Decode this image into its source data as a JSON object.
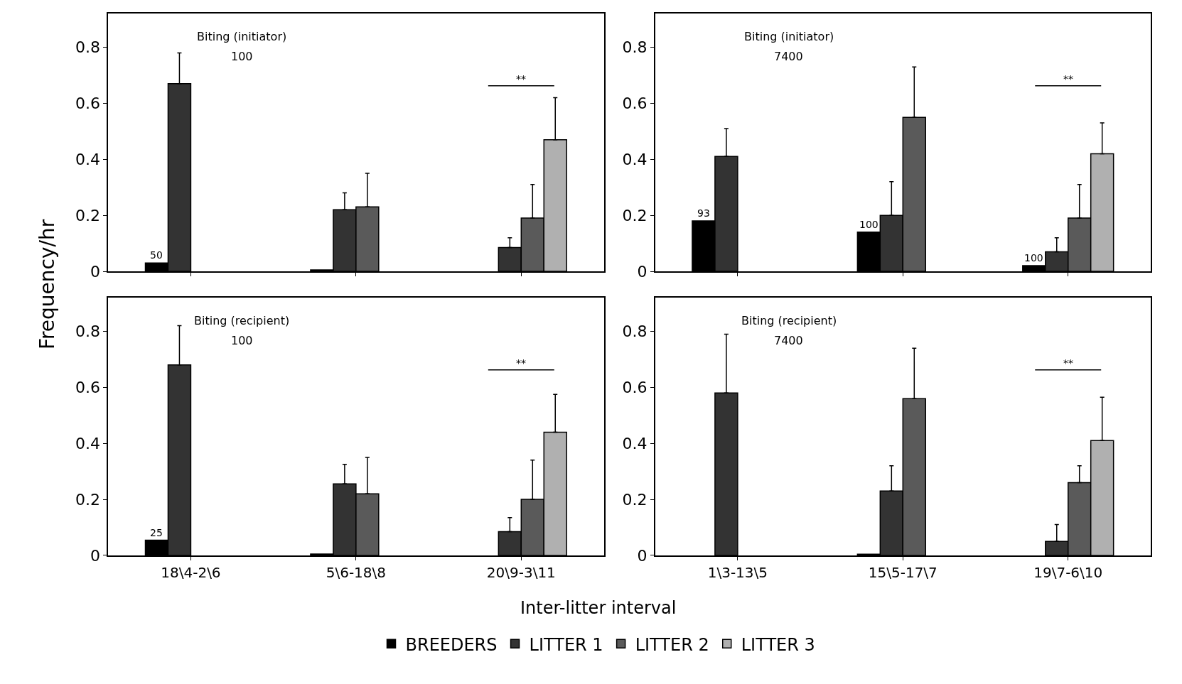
{
  "chart_data": [
    {
      "type": "bar",
      "categories": [
        "18\\4-2\\6",
        "5\\6-18\\8",
        "20\\9-3\\11"
      ],
      "ylabel": "Frequency/hr",
      "ylim": [
        0,
        0.92
      ],
      "yticks": [
        0,
        0.2,
        0.4,
        0.6,
        0.8
      ],
      "tick_labels": "y",
      "legend": "bottom",
      "annotations": [
        "Biting (initiator)",
        "100",
        "**",
        {
          "text": "50",
          "x": "18\\4-2\\6",
          "y": 0.03
        }
      ],
      "series": [
        {
          "name": "BREEDERS",
          "color": "#000000",
          "values": [
            0.03,
            0.005,
            null
          ]
        },
        {
          "name": "LITTER 1",
          "color": "#333333",
          "values": [
            0.67,
            0.22,
            0.085
          ],
          "errors": [
            [
              0.67,
              0.78
            ],
            [
              0.22,
              0.28
            ],
            [
              0.085,
              0.12
            ]
          ]
        },
        {
          "name": "LITTER 2",
          "color": "#5a5a5a",
          "values": [
            null,
            0.23,
            0.19
          ],
          "errors": [
            null,
            [
              0.23,
              0.35
            ],
            [
              0.19,
              0.31
            ]
          ]
        },
        {
          "name": "LITTER 3",
          "color": "#b0b0b0",
          "values": [
            null,
            null,
            0.47
          ],
          "errors": [
            null,
            null,
            [
              0.47,
              0.62
            ]
          ]
        }
      ]
    },
    {
      "type": "bar",
      "categories": [
        "1\\3-13\\5",
        "15\\5-17\\7",
        "19\\7-6\\10"
      ],
      "ylim": [
        0,
        0.92
      ],
      "yticks": [
        0,
        0.2,
        0.4,
        0.6,
        0.8
      ],
      "tick_labels": "y",
      "annotations": [
        "Biting (initiator)",
        "7400",
        "**",
        {
          "text": "93",
          "x": "1\\3-13\\5",
          "y": 0.18
        },
        {
          "text": "100",
          "x": "15\\5-17\\7",
          "y": 0.14
        },
        {
          "text": "100",
          "x": "19\\7-6\\10",
          "y": 0.02
        }
      ],
      "series": [
        {
          "color": "#000000",
          "values": [
            0.18,
            0.14,
            0.02
          ]
        },
        {
          "color": "#333333",
          "values": [
            0.41,
            0.2,
            0.07
          ],
          "errors": [
            [
              0.41,
              0.51
            ],
            [
              0.2,
              0.32
            ],
            [
              0.07,
              0.12
            ]
          ]
        },
        {
          "color": "#5a5a5a",
          "values": [
            null,
            0.55,
            0.19
          ],
          "errors": [
            null,
            [
              0.55,
              0.73
            ],
            [
              0.19,
              0.31
            ]
          ]
        },
        {
          "color": "#b0b0b0",
          "values": [
            null,
            null,
            0.42
          ],
          "errors": [
            null,
            null,
            [
              0.42,
              0.53
            ]
          ]
        }
      ]
    },
    {
      "type": "bar",
      "categories": [
        "18\\4-2\\6",
        "5\\6-18\\8",
        "20\\9-3\\11"
      ],
      "xlabel": "Inter-litter interval",
      "ylim": [
        0,
        0.92
      ],
      "yticks": [
        0,
        0.2,
        0.4,
        0.6,
        0.8
      ],
      "annotations": [
        "Biting (recipient)",
        "100",
        "**",
        {
          "text": "25",
          "x": "18\\4-2\\6",
          "y": 0.054
        }
      ],
      "series": [
        {
          "color": "#000000",
          "values": [
            0.054,
            0.005,
            null
          ]
        },
        {
          "color": "#333333",
          "values": [
            0.68,
            0.255,
            0.085
          ],
          "errors": [
            [
              0.68,
              0.82
            ],
            [
              0.255,
              0.325
            ],
            [
              0.085,
              0.135
            ]
          ]
        },
        {
          "color": "#5a5a5a",
          "values": [
            null,
            0.22,
            0.2
          ],
          "errors": [
            null,
            [
              0.22,
              0.35
            ],
            [
              0.2,
              0.34
            ]
          ]
        },
        {
          "color": "#b0b0b0",
          "values": [
            null,
            null,
            0.44
          ],
          "errors": [
            null,
            null,
            [
              0.44,
              0.575
            ]
          ]
        }
      ]
    },
    {
      "type": "bar",
      "categories": [
        "1\\3-13\\5",
        "15\\5-17\\7",
        "19\\7-6\\10"
      ],
      "ylim": [
        0,
        0.92
      ],
      "yticks": [
        0,
        0.2,
        0.4,
        0.6,
        0.8
      ],
      "annotations": [
        "Biting (recipient)",
        "7400",
        "**"
      ],
      "series": [
        {
          "color": "#000000",
          "values": [
            null,
            0.004,
            null
          ]
        },
        {
          "color": "#333333",
          "values": [
            0.58,
            0.23,
            0.05
          ],
          "errors": [
            [
              0.58,
              0.79
            ],
            [
              0.23,
              0.32
            ],
            [
              0.05,
              0.11
            ]
          ]
        },
        {
          "color": "#5a5a5a",
          "values": [
            null,
            0.56,
            0.26
          ],
          "errors": [
            null,
            [
              0.56,
              0.74
            ],
            [
              0.26,
              0.32
            ]
          ]
        },
        {
          "color": "#b0b0b0",
          "values": [
            null,
            null,
            0.41
          ],
          "errors": [
            null,
            null,
            [
              0.41,
              0.565
            ]
          ]
        }
      ]
    }
  ]
}
